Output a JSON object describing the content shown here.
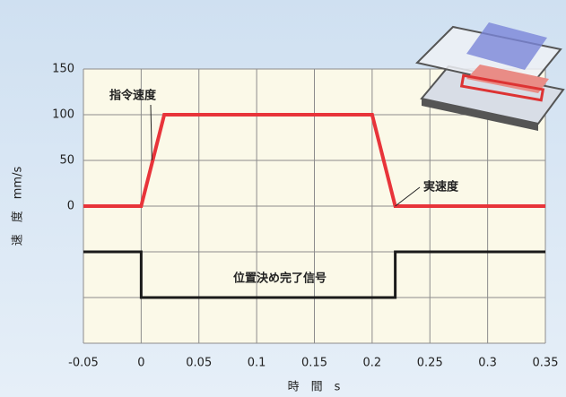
{
  "chart_data": {
    "type": "line",
    "xlabel": "時　間　s",
    "ylabel": "速　度　mm/s",
    "xlim": [
      -0.05,
      0.35
    ],
    "xticks": [
      -0.05,
      0,
      0.05,
      0.1,
      0.15,
      0.2,
      0.25,
      0.3,
      0.35
    ],
    "ylim": [
      -150,
      150
    ],
    "yticks": [
      0,
      50,
      100,
      150
    ],
    "ygrid": [
      -100,
      -50
    ],
    "grid": true,
    "series": [
      {
        "name": "指令速度",
        "color": "#e8343a",
        "x": [
          -0.05,
          0,
          0.02,
          0.2,
          0.22,
          0.35
        ],
        "values": [
          0,
          0,
          100,
          100,
          0,
          0
        ]
      },
      {
        "name": "位置決め完了信号",
        "color": "#1a1a1a",
        "x": [
          -0.05,
          0,
          0,
          0.22,
          0.22,
          0.35
        ],
        "values": [
          -50,
          -50,
          -100,
          -100,
          -50,
          -50
        ]
      }
    ],
    "annotations": [
      "実速度"
    ]
  }
}
